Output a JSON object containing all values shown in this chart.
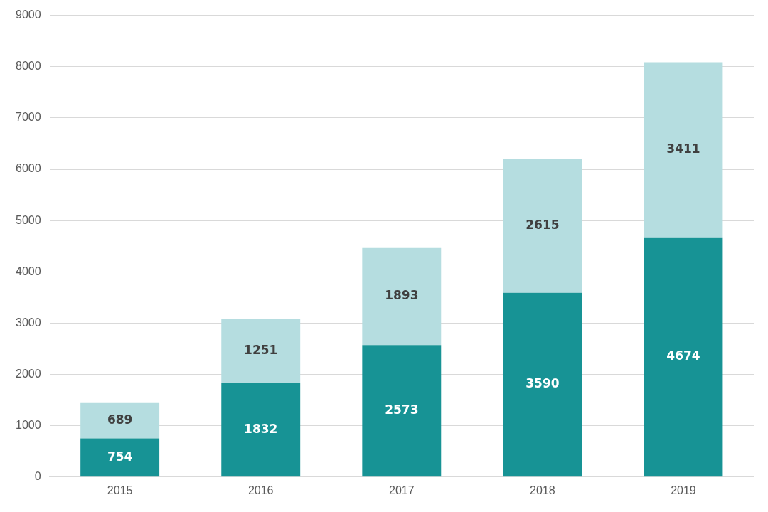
{
  "chart_data": {
    "type": "bar",
    "stacked": true,
    "categories": [
      "2015",
      "2016",
      "2017",
      "2018",
      "2019"
    ],
    "series": [
      {
        "color": "#179395",
        "values": [
          754,
          1832,
          2573,
          3590,
          4674
        ]
      },
      {
        "color": "#b5dde0",
        "values": [
          689,
          1251,
          1893,
          2615,
          3411
        ]
      }
    ],
    "ylim": [
      0,
      9000
    ],
    "yticks": [
      0,
      1000,
      2000,
      3000,
      4000,
      5000,
      6000,
      7000,
      8000,
      9000
    ],
    "grid": "y",
    "data_labels": true
  }
}
